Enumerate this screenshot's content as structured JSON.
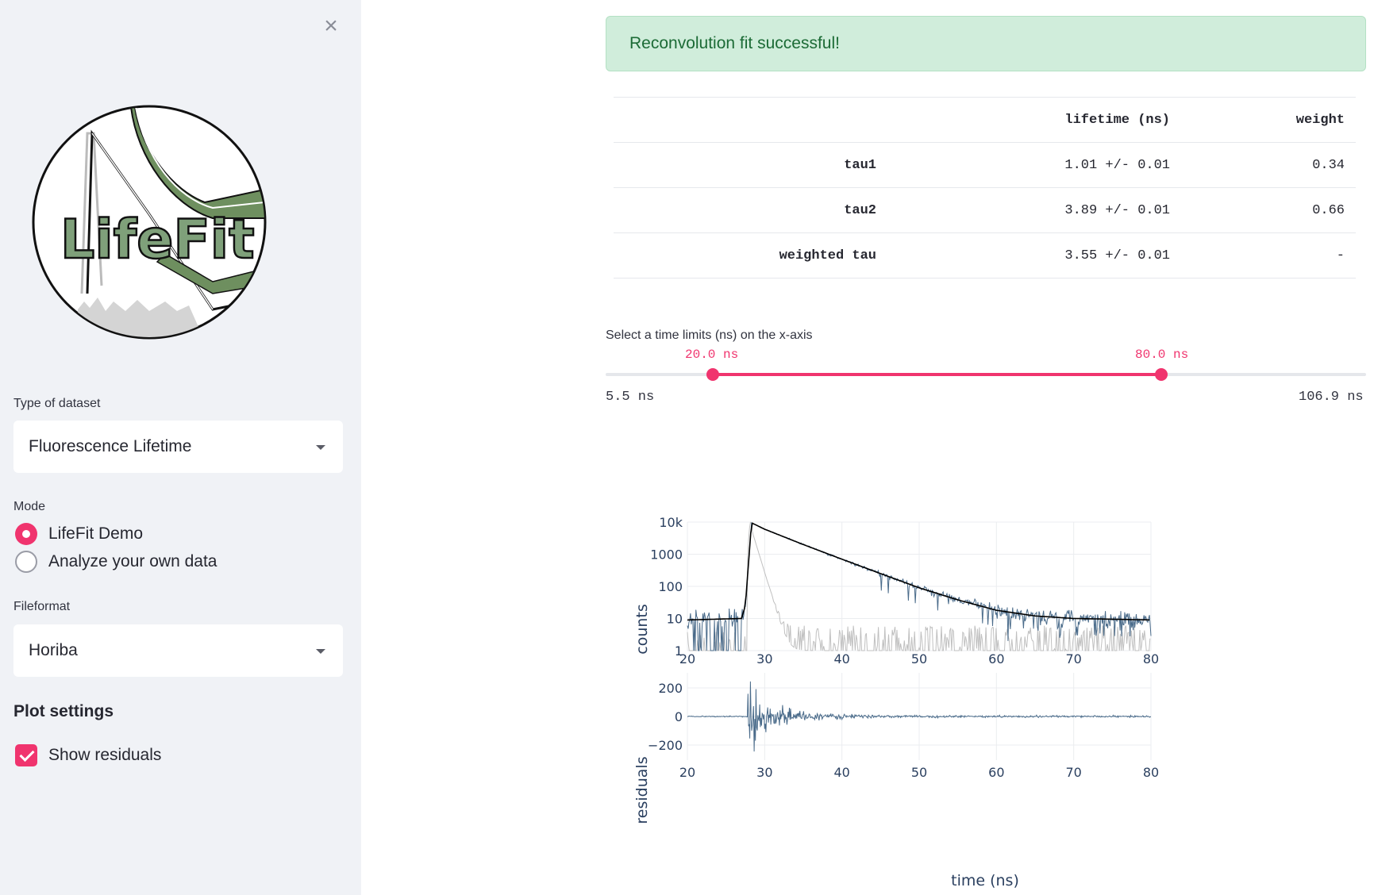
{
  "sidebar": {
    "close_icon": "×",
    "logo_text": "LifeFit",
    "dataset_label": "Type of dataset",
    "dataset_value": "Fluorescence Lifetime",
    "mode_label": "Mode",
    "mode_options": [
      "LifeFit Demo",
      "Analyze your own data"
    ],
    "mode_selected": 0,
    "fileformat_label": "Fileformat",
    "fileformat_value": "Horiba",
    "plot_settings_title": "Plot settings",
    "show_residuals_label": "Show residuals",
    "show_residuals_checked": true
  },
  "main": {
    "alert_text": "Reconvolution fit successful!",
    "table": {
      "headers": [
        "",
        "lifetime (ns)",
        "weight"
      ],
      "rows": [
        [
          "tau1",
          "1.01 +/- 0.01",
          "0.34"
        ],
        [
          "tau2",
          "3.89 +/- 0.01",
          "0.66"
        ],
        [
          "weighted tau",
          "3.55 +/- 0.01",
          "-"
        ]
      ]
    },
    "slider": {
      "label": "Select a time limits (ns) on the x-axis",
      "low_label": "20.0 ns",
      "high_label": "80.0 ns",
      "min_label": "5.5 ns",
      "max_label": "106.9 ns",
      "low": 20.0,
      "high": 80.0,
      "min": 5.5,
      "max": 106.9
    }
  },
  "colors": {
    "accent": "#f0346e",
    "data": "#4a6b8a",
    "irf": "#c0c0c0",
    "fit": "#000000",
    "success_bg": "#d0eddb"
  },
  "chart_data": [
    {
      "type": "line",
      "title": "",
      "xlabel": "",
      "ylabel": "counts",
      "yscale": "log",
      "xlim": [
        20,
        80
      ],
      "ylim": [
        1,
        10000
      ],
      "xticks": [
        20,
        30,
        40,
        50,
        60,
        70,
        80
      ],
      "yticks": [
        1,
        10,
        100,
        1000,
        10000
      ],
      "ytick_labels": [
        "1",
        "10",
        "100",
        "1000",
        "10k"
      ],
      "series": [
        {
          "name": "data",
          "description": "measured decay, noisy around fit"
        },
        {
          "name": "IRF",
          "description": "instrument response, sharp peak near 28 ns"
        },
        {
          "name": "fit",
          "x": [
            20,
            27,
            27.5,
            28.3,
            30,
            35,
            40,
            45,
            50,
            55,
            60,
            65,
            70,
            75,
            80
          ],
          "y": [
            9,
            10,
            25,
            9500,
            6000,
            2000,
            700,
            250,
            90,
            38,
            18,
            12,
            10,
            9.5,
            9
          ]
        }
      ]
    },
    {
      "type": "line",
      "title": "",
      "xlabel": "time (ns)",
      "ylabel": "residuals",
      "xlim": [
        20,
        80
      ],
      "ylim": [
        -250,
        250
      ],
      "xticks": [
        20,
        30,
        40,
        50,
        60,
        70,
        80
      ],
      "yticks": [
        -200,
        0,
        200
      ],
      "ytick_labels": [
        "−200",
        "0",
        "200"
      ],
      "series": [
        {
          "name": "residuals",
          "description": "near zero before 28 ns, large oscillation after peak decaying to small noise"
        }
      ]
    }
  ]
}
